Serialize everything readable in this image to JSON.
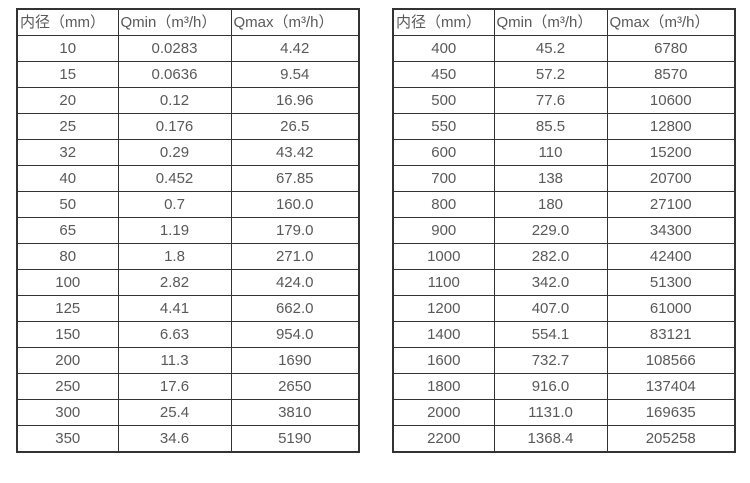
{
  "colors": {
    "border": "#333333",
    "text": "#595959",
    "background": "#ffffff"
  },
  "tables": [
    {
      "name": "flow-table-small-diameters",
      "headers": [
        "内径（mm）",
        "Qmin（m³/h）",
        "Qmax（m³/h）"
      ],
      "rows": [
        [
          "10",
          "0.0283",
          "4.42"
        ],
        [
          "15",
          "0.0636",
          "9.54"
        ],
        [
          "20",
          "0.12",
          "16.96"
        ],
        [
          "25",
          "0.176",
          "26.5"
        ],
        [
          "32",
          "0.29",
          "43.42"
        ],
        [
          "40",
          "0.452",
          "67.85"
        ],
        [
          "50",
          "0.7",
          "160.0"
        ],
        [
          "65",
          "1.19",
          "179.0"
        ],
        [
          "80",
          "1.8",
          "271.0"
        ],
        [
          "100",
          "2.82",
          "424.0"
        ],
        [
          "125",
          "4.41",
          "662.0"
        ],
        [
          "150",
          "6.63",
          "954.0"
        ],
        [
          "200",
          "11.3",
          "1690"
        ],
        [
          "250",
          "17.6",
          "2650"
        ],
        [
          "300",
          "25.4",
          "3810"
        ],
        [
          "350",
          "34.6",
          "5190"
        ]
      ]
    },
    {
      "name": "flow-table-large-diameters",
      "headers": [
        "内径（mm）",
        "Qmin（m³/h）",
        "Qmax（m³/h）"
      ],
      "rows": [
        [
          "400",
          "45.2",
          "6780"
        ],
        [
          "450",
          "57.2",
          "8570"
        ],
        [
          "500",
          "77.6",
          "10600"
        ],
        [
          "550",
          "85.5",
          "12800"
        ],
        [
          "600",
          "110",
          "15200"
        ],
        [
          "700",
          "138",
          "20700"
        ],
        [
          "800",
          "180",
          "27100"
        ],
        [
          "900",
          "229.0",
          "34300"
        ],
        [
          "1000",
          "282.0",
          "42400"
        ],
        [
          "1100",
          "342.0",
          "51300"
        ],
        [
          "1200",
          "407.0",
          "61000"
        ],
        [
          "1400",
          "554.1",
          "83121"
        ],
        [
          "1600",
          "732.7",
          "108566"
        ],
        [
          "1800",
          "916.0",
          "137404"
        ],
        [
          "2000",
          "1131.0",
          "169635"
        ],
        [
          "2200",
          "1368.4",
          "205258"
        ]
      ]
    }
  ]
}
